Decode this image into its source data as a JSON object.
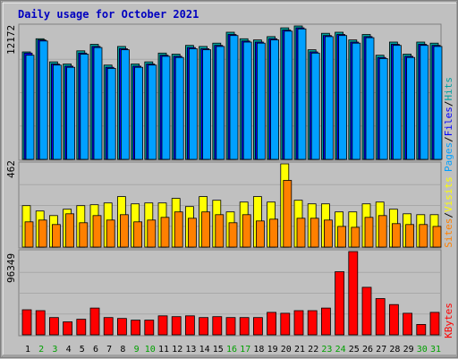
{
  "window": {
    "title": "Daily usage for October 2021"
  },
  "colors": {
    "background": "#c0c0c0",
    "title": "#0000c0",
    "hits": "#00a0a0",
    "files": "#0000ff",
    "pages": "#00a0ff",
    "visits": "#ffff00",
    "sites": "#ff8000",
    "kbytes": "#ff0000",
    "weekday": "#000000",
    "weekend": "#00a000",
    "separator": "#000000"
  },
  "labels": {
    "top_max": "12172",
    "mid_max": "462",
    "bot_max": "96349",
    "top_legend": [
      {
        "text": "Pages",
        "color": "#00a0ff"
      },
      {
        "text": "/",
        "color": "#000000"
      },
      {
        "text": "Files",
        "color": "#0000ff"
      },
      {
        "text": "/",
        "color": "#000000"
      },
      {
        "text": "Hits",
        "color": "#00a0a0"
      }
    ],
    "mid_legend": [
      {
        "text": "Sites",
        "color": "#ff8000"
      },
      {
        "text": "/",
        "color": "#000000"
      },
      {
        "text": "Visits",
        "color": "#ffff00"
      }
    ],
    "bot_legend": [
      {
        "text": "KBytes",
        "color": "#ff0000"
      }
    ]
  },
  "chart_data": {
    "type": "bar",
    "title": "Daily usage for October 2021",
    "categories": [
      "1",
      "2",
      "3",
      "4",
      "5",
      "6",
      "7",
      "8",
      "9",
      "10",
      "11",
      "12",
      "13",
      "14",
      "15",
      "16",
      "17",
      "18",
      "19",
      "20",
      "21",
      "22",
      "23",
      "24",
      "25",
      "26",
      "27",
      "28",
      "29",
      "30",
      "31"
    ],
    "weekend_days": [
      "2",
      "3",
      "9",
      "10",
      "16",
      "17",
      "23",
      "24",
      "30",
      "31"
    ],
    "panels": [
      {
        "name": "usage",
        "max_label": "12172",
        "ylim": [
          0,
          12172
        ],
        "series": [
          {
            "name": "Hits",
            "values": [
              9800,
              11000,
              8900,
              8700,
              9900,
              10500,
              8600,
              10300,
              8700,
              8900,
              9700,
              9600,
              10400,
              10300,
              10600,
              11600,
              11000,
              10900,
              11200,
              12000,
              12172,
              10000,
              11500,
              11600,
              10900,
              11400,
              9500,
              10700,
              9600,
              10700,
              10600
            ]
          },
          {
            "name": "Files",
            "values": [
              9700,
              10900,
              8700,
              8500,
              9700,
              10300,
              8400,
              10100,
              8500,
              8700,
              9500,
              9400,
              10200,
              10100,
              10400,
              11400,
              10800,
              10700,
              11000,
              11800,
              12000,
              9800,
              11300,
              11400,
              10700,
              11200,
              9300,
              10500,
              9400,
              10500,
              10400
            ]
          },
          {
            "name": "Pages",
            "values": [
              9500,
              10800,
              8600,
              8400,
              9600,
              10200,
              8300,
              10000,
              8400,
              8600,
              9400,
              9300,
              10100,
              10000,
              10300,
              11300,
              10700,
              10600,
              10900,
              11700,
              11900,
              9700,
              11200,
              11300,
              10600,
              11100,
              9200,
              10400,
              9300,
              10400,
              10300
            ]
          }
        ]
      },
      {
        "name": "visitors",
        "max_label": "462",
        "ylim": [
          0,
          462
        ],
        "series": [
          {
            "name": "Visits",
            "values": [
              230,
              200,
              175,
              210,
              230,
              235,
              245,
              280,
              240,
              245,
              245,
              270,
              225,
              280,
              260,
              195,
              250,
              280,
              250,
              462,
              260,
              240,
              240,
              195,
              195,
              240,
              250,
              210,
              185,
              180,
              180
            ]
          },
          {
            "name": "Sites",
            "values": [
              140,
              150,
              125,
              185,
              135,
              175,
              150,
              180,
              140,
              150,
              165,
              195,
              160,
              195,
              180,
              135,
              180,
              145,
              155,
              370,
              160,
              160,
              150,
              115,
              110,
              165,
              175,
              130,
              125,
              125,
              115
            ]
          }
        ]
      },
      {
        "name": "traffic",
        "max_label": "96349",
        "ylim": [
          0,
          96349
        ],
        "series": [
          {
            "name": "KBytes",
            "values": [
              29000,
              28000,
              20000,
              15000,
              18000,
              31000,
              20000,
              19000,
              17000,
              17000,
              22000,
              21000,
              22000,
              20000,
              21000,
              20000,
              20000,
              20000,
              26000,
              25000,
              28000,
              28000,
              31000,
              73000,
              96349,
              55000,
              42000,
              35000,
              25000,
              12000,
              26000
            ]
          }
        ]
      }
    ]
  }
}
